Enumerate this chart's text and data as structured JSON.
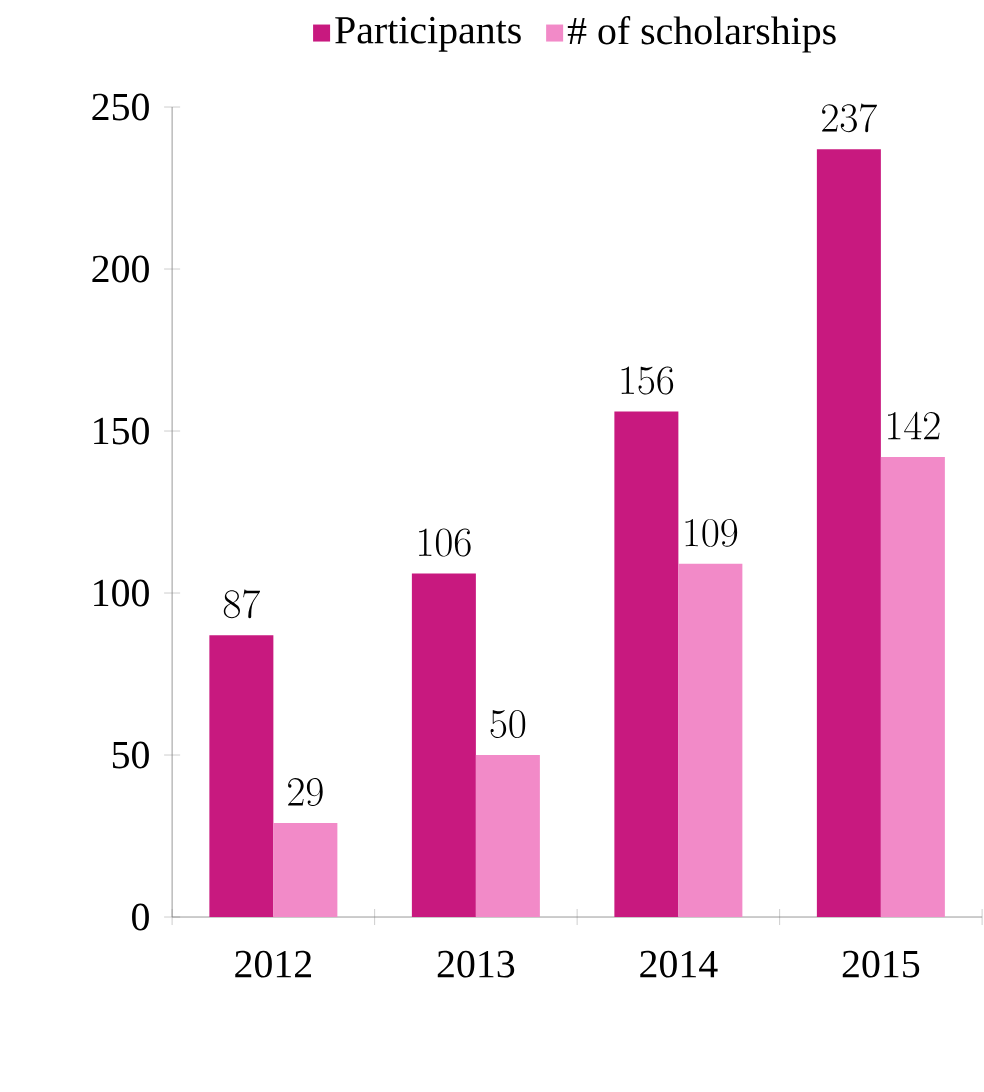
{
  "chart_data": {
    "type": "bar",
    "categories": [
      "2012",
      "2013",
      "2014",
      "2015"
    ],
    "series": [
      {
        "name": "Participants",
        "color": "#c8197f",
        "values": [
          87,
          106,
          156,
          237
        ]
      },
      {
        "name": "# of scholarships",
        "color": "#f28ac8",
        "values": [
          29,
          50,
          109,
          142
        ]
      }
    ],
    "ylim": [
      0,
      250
    ],
    "yticks": [
      0,
      50,
      100,
      150,
      200,
      250
    ],
    "data_labels": true,
    "legend": "top",
    "grid": false
  }
}
